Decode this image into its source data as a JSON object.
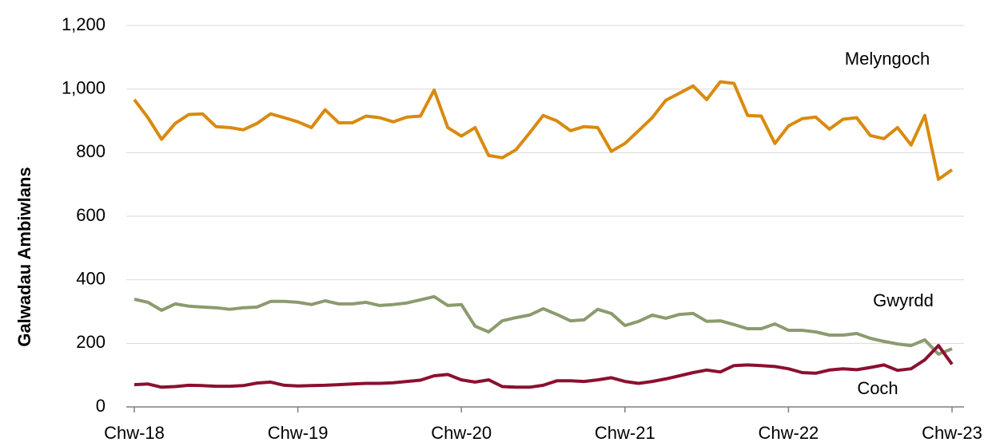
{
  "chart_data": {
    "type": "line",
    "ylabel": "Galwadau Ambiwlans",
    "categories": [
      "Chw-18",
      null,
      null,
      null,
      null,
      null,
      null,
      null,
      null,
      null,
      null,
      null,
      "Chw-19",
      null,
      null,
      null,
      null,
      null,
      null,
      null,
      null,
      null,
      null,
      null,
      "Chw-20",
      null,
      null,
      null,
      null,
      null,
      null,
      null,
      null,
      null,
      null,
      null,
      "Chw-21",
      null,
      null,
      null,
      null,
      null,
      null,
      null,
      null,
      null,
      null,
      null,
      "Chw-22",
      null,
      null,
      null,
      null,
      null,
      null,
      null,
      null,
      null,
      null,
      null,
      "Chw-23"
    ],
    "series": [
      {
        "name": "Melyngoch",
        "color": "#d98a0e",
        "values": [
          967,
          910,
          842,
          892,
          920,
          922,
          882,
          879,
          872,
          892,
          922,
          910,
          897,
          879,
          935,
          894,
          894,
          915,
          910,
          897,
          912,
          915,
          997,
          879,
          852,
          879,
          791,
          784,
          809,
          862,
          917,
          900,
          869,
          882,
          879,
          804,
          829,
          869,
          910,
          965,
          987,
          1010,
          967,
          1023,
          1018,
          917,
          915,
          829,
          884,
          907,
          912,
          874,
          905,
          910,
          854,
          844,
          879,
          824,
          917,
          716,
          746
        ]
      },
      {
        "name": "Gwyrdd",
        "color": "#8c9b6e",
        "values": [
          339,
          329,
          304,
          324,
          317,
          314,
          312,
          307,
          312,
          314,
          332,
          332,
          329,
          322,
          334,
          324,
          324,
          329,
          319,
          322,
          327,
          337,
          347,
          319,
          322,
          254,
          236,
          271,
          281,
          289,
          309,
          291,
          271,
          274,
          307,
          294,
          256,
          269,
          289,
          279,
          291,
          294,
          269,
          271,
          259,
          246,
          246,
          261,
          241,
          241,
          236,
          226,
          226,
          231,
          216,
          206,
          198,
          193,
          211,
          166,
          183
        ]
      },
      {
        "name": "Coch",
        "color": "#8b1030",
        "values": [
          70,
          72,
          62,
          64,
          68,
          67,
          65,
          65,
          67,
          75,
          78,
          68,
          66,
          67,
          68,
          70,
          72,
          74,
          74,
          76,
          80,
          84,
          98,
          102,
          85,
          78,
          85,
          64,
          62,
          62,
          68,
          82,
          82,
          80,
          85,
          92,
          80,
          74,
          80,
          88,
          98,
          108,
          116,
          110,
          130,
          132,
          130,
          127,
          120,
          108,
          106,
          116,
          120,
          117,
          124,
          132,
          115,
          120,
          148,
          193,
          134
        ]
      }
    ],
    "ylim": [
      0,
      1200
    ],
    "yticks": [
      0,
      200,
      400,
      600,
      800,
      {
        "value": 1000,
        "label": "1,000"
      },
      {
        "value": 1200,
        "label": "1,200"
      }
    ],
    "grid": true
  }
}
